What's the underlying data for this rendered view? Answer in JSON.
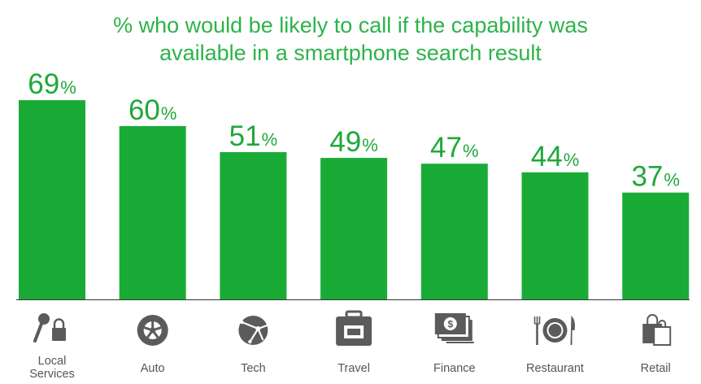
{
  "title_lines": [
    "% who would be likely to call if the capability was",
    "available in a smartphone search result"
  ],
  "colors": {
    "bar": "#1aab37",
    "value_text": "#1fa83a",
    "title": "#2db34a",
    "icon": "#5b5b5b",
    "baseline": "#333333"
  },
  "chart_data": {
    "type": "bar",
    "title": "% who would be likely to call if the capability was available in a smartphone search result",
    "categories": [
      "Local Services",
      "Auto",
      "Tech",
      "Travel",
      "Finance",
      "Restaurant",
      "Retail"
    ],
    "category_label_lines": [
      [
        "Local",
        "Services"
      ],
      [
        "Auto"
      ],
      [
        "Tech"
      ],
      [
        "Travel"
      ],
      [
        "Finance"
      ],
      [
        "Restaurant"
      ],
      [
        "Retail"
      ]
    ],
    "values": [
      69,
      60,
      51,
      49,
      47,
      44,
      37
    ],
    "value_suffix": "%",
    "icons": [
      "key-lock-icon",
      "tire-icon",
      "globe-network-icon",
      "briefcase-icon",
      "money-bills-icon",
      "plate-fork-knife-icon",
      "shopping-bag-icon"
    ],
    "xlabel": "",
    "ylabel": "",
    "ylim": [
      0,
      69
    ],
    "grid": false,
    "legend": "none"
  }
}
